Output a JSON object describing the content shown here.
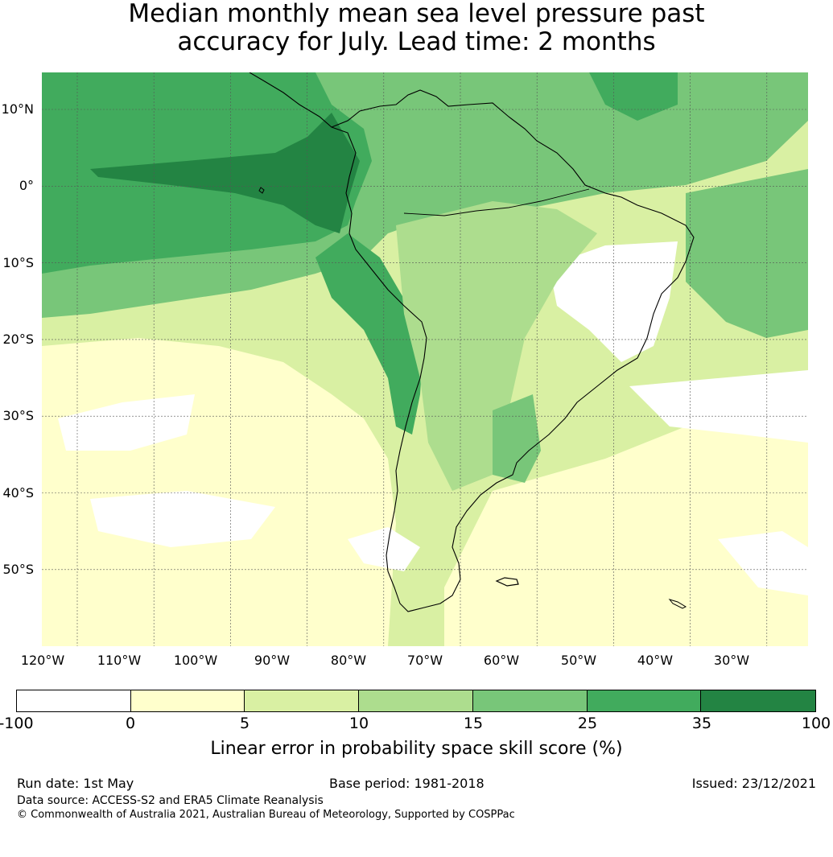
{
  "title": {
    "line1": "Median monthly mean sea level pressure past",
    "line2": "accuracy for July. Lead time: 2 months"
  },
  "map": {
    "lat_labels": [
      "10°N",
      "0°",
      "10°S",
      "20°S",
      "30°S",
      "40°S",
      "50°S"
    ],
    "lon_labels": [
      "120°W",
      "110°W",
      "100°W",
      "90°W",
      "80°W",
      "70°W",
      "60°W",
      "50°W",
      "40°W",
      "30°W"
    ]
  },
  "colorbar": {
    "ticks": [
      "-100",
      "0",
      "5",
      "10",
      "15",
      "25",
      "35",
      "100"
    ],
    "colors": [
      "#ffffff",
      "#ffffcc",
      "#d9f0a3",
      "#addd8e",
      "#78c679",
      "#41ab5d",
      "#238443"
    ],
    "label": "Linear error in probability space skill score (%)"
  },
  "footer": {
    "run_date": "Run date: 1st May",
    "base_period": "Base period: 1981-2018",
    "issued": "Issued: 23/12/2021",
    "data_source": "Data source: ACCESS-S2 and ERA5 Climate Reanalysis",
    "copyright": "© Commonwealth of Australia 2021, Australian Bureau of Meteorology, Supported by COSPPac"
  }
}
